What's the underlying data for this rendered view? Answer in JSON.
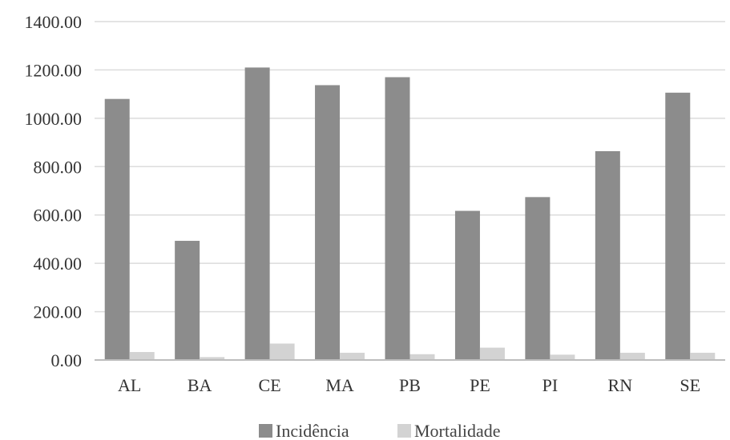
{
  "chart_data": {
    "type": "bar",
    "categories": [
      "AL",
      "BA",
      "CE",
      "MA",
      "PB",
      "PE",
      "PI",
      "RN",
      "SE"
    ],
    "series": [
      {
        "name": "Incidência",
        "color": "#8c8c8c",
        "values": [
          1080,
          493,
          1210,
          1137,
          1170,
          617,
          674,
          864,
          1106
        ]
      },
      {
        "name": "Mortalidade",
        "color": "#d3d3d3",
        "values": [
          33,
          12,
          68,
          30,
          24,
          51,
          22,
          30,
          30
        ]
      }
    ],
    "ylim": [
      0,
      1400
    ],
    "yticks": [
      "0.00",
      "200.00",
      "400.00",
      "600.00",
      "800.00",
      "1000.00",
      "1200.00",
      "1400.00"
    ],
    "grid": true,
    "legend": "bottom"
  }
}
